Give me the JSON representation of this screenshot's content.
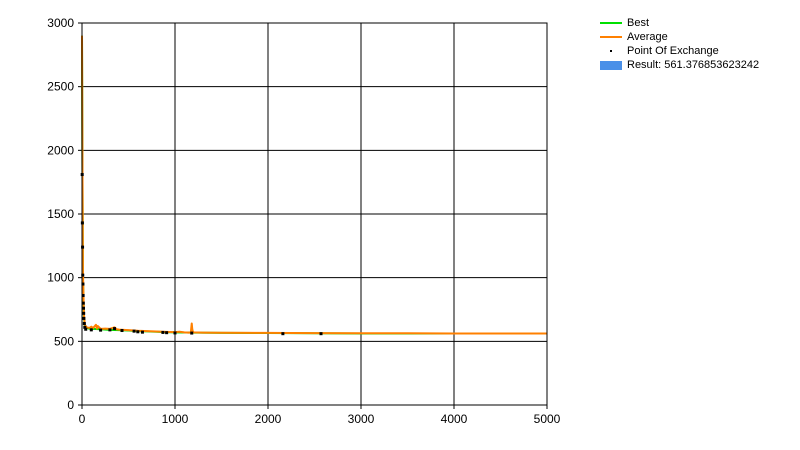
{
  "chart_data": {
    "type": "line",
    "xlim": [
      0,
      5000
    ],
    "ylim": [
      0,
      3000
    ],
    "x_ticks": [
      0,
      1000,
      2000,
      3000,
      4000,
      5000
    ],
    "y_ticks": [
      0,
      500,
      1000,
      1500,
      2000,
      2500,
      3000
    ],
    "x_tick_labels": [
      "0",
      "1000",
      "2000",
      "3000",
      "4000",
      "5000"
    ],
    "y_tick_labels": [
      "0",
      "500",
      "1000",
      "1500",
      "2000",
      "2500",
      "3000"
    ],
    "grid": true,
    "legend_position": "top-right",
    "series": [
      {
        "name": "Best",
        "kind": "line",
        "color": "#00e000",
        "x": [
          0,
          5,
          10,
          20,
          30,
          50,
          80,
          120,
          200,
          300,
          400,
          500,
          600,
          700,
          800,
          900,
          1000,
          1200,
          1500,
          2000,
          2500,
          3000,
          3500,
          4000,
          4500,
          5000
        ],
        "y": [
          2900,
          1800,
          1000,
          700,
          620,
          605,
          600,
          598,
          595,
          590,
          588,
          585,
          580,
          578,
          575,
          572,
          570,
          568,
          566,
          565,
          563,
          562,
          562,
          561.5,
          561.4,
          561.38
        ]
      },
      {
        "name": "Average",
        "kind": "line",
        "color": "#ff8000",
        "x": [
          0,
          5,
          10,
          20,
          30,
          50,
          80,
          100,
          120,
          150,
          160,
          170,
          200,
          250,
          300,
          350,
          370,
          400,
          450,
          500,
          600,
          700,
          800,
          900,
          1000,
          1050,
          1100,
          1150,
          1170,
          1180,
          1185,
          1190,
          1200,
          1300,
          1500,
          2000,
          2500,
          3000,
          3500,
          4000,
          4500,
          5000
        ],
        "y": [
          2900,
          1850,
          1050,
          720,
          630,
          610,
          605,
          615,
          605,
          630,
          600,
          620,
          598,
          600,
          598,
          610,
          595,
          592,
          590,
          588,
          583,
          580,
          577,
          574,
          572,
          575,
          570,
          568,
          570,
          640,
          600,
          580,
          570,
          568,
          567,
          566,
          564,
          563,
          563,
          562,
          562,
          562
        ]
      },
      {
        "name": "Point Of Exchange",
        "kind": "points",
        "color": "#000000",
        "x": [
          2,
          4,
          6,
          8,
          10,
          12,
          14,
          16,
          18,
          20,
          25,
          30,
          40,
          100,
          200,
          300,
          350,
          430,
          560,
          600,
          650,
          870,
          910,
          1000,
          1180,
          2160,
          2570
        ],
        "y": [
          1810,
          1430,
          1240,
          1020,
          950,
          860,
          800,
          760,
          720,
          680,
          640,
          610,
          595,
          590,
          588,
          590,
          600,
          585,
          580,
          575,
          572,
          570,
          568,
          566,
          565,
          560,
          560
        ]
      }
    ],
    "legend": [
      {
        "label": "Best",
        "kind": "line",
        "color": "#00e000"
      },
      {
        "label": "Average",
        "kind": "line",
        "color": "#ff8000"
      },
      {
        "label": "Point Of Exchange",
        "kind": "point",
        "color": "#000000"
      },
      {
        "label": "Result: 561.376853623242",
        "kind": "bar",
        "color": "#4a90e8"
      }
    ]
  }
}
